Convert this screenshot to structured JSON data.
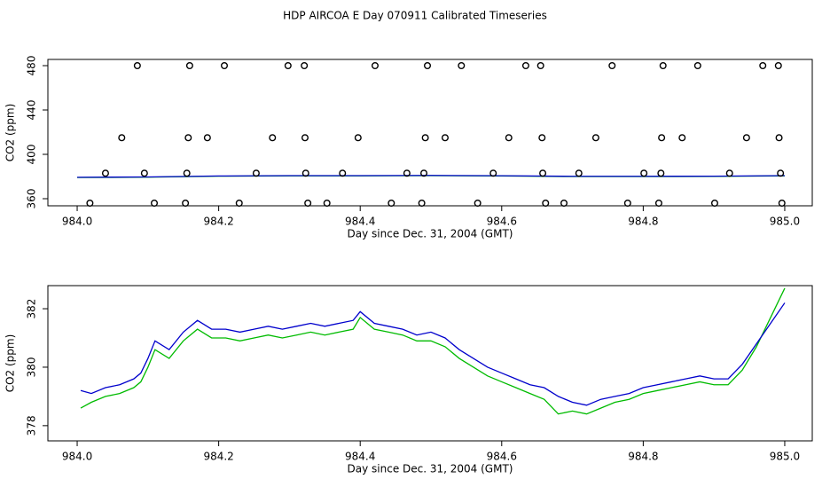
{
  "title": "HDP AIRCOA E  Day 070911  Calibrated Timeseries",
  "chart_data": [
    {
      "type": "line",
      "xlabel": "Day since Dec. 31, 2004 (GMT)",
      "ylabel": "CO2 (ppm)",
      "xlim": [
        983.9586,
        985.0389
      ],
      "ylim": [
        353.6,
        485.6
      ],
      "xticks": [
        {
          "value": 984,
          "label": "984.0"
        },
        {
          "value": 984.2,
          "label": "984.2"
        },
        {
          "value": 984.4,
          "label": "984.4"
        },
        {
          "value": 984.6,
          "label": "984.6"
        },
        {
          "value": 984.8,
          "label": "984.8"
        },
        {
          "value": 985,
          "label": "985.0"
        }
      ],
      "yticks": [
        360,
        400,
        440,
        480
      ],
      "x": [
        984.0,
        984.1,
        984.2,
        984.3,
        984.4,
        984.5,
        984.6,
        984.7,
        984.8,
        984.9,
        985.0
      ],
      "series": [
        {
          "style": "line",
          "color": "#00bb00",
          "values": [
            379.1,
            379.4,
            380.3,
            380.6,
            380.6,
            380.8,
            380.5,
            380.0,
            380.0,
            380.1,
            380.6
          ]
        },
        {
          "style": "line",
          "color": "#0000cc",
          "values": [
            379.3,
            379.6,
            380.5,
            380.8,
            380.8,
            381.0,
            380.7,
            380.2,
            380.2,
            380.3,
            380.8
          ]
        },
        {
          "style": "points",
          "color": "#000000",
          "x": [
            984.085,
            984.159,
            984.208,
            984.298,
            984.321,
            984.421,
            984.495,
            984.543,
            984.634,
            984.655,
            984.756,
            984.828,
            984.877,
            984.969,
            984.991,
            984.063,
            984.157,
            984.184,
            984.276,
            984.322,
            984.397,
            984.492,
            984.52,
            984.61,
            984.657,
            984.733,
            984.826,
            984.855,
            984.946,
            984.992,
            984.04,
            984.095,
            984.155,
            984.253,
            984.323,
            984.375,
            984.466,
            984.49,
            984.588,
            984.658,
            984.709,
            984.801,
            984.825,
            984.922,
            984.994,
            984.018,
            984.109,
            984.153,
            984.229,
            984.326,
            984.353,
            984.444,
            984.487,
            984.566,
            984.662,
            984.688,
            984.778,
            984.822,
            984.901,
            984.996
          ],
          "values": [
            480,
            480,
            480,
            480,
            480,
            480,
            480,
            480,
            480,
            480,
            480,
            480,
            480,
            480,
            480,
            415,
            415,
            415,
            415,
            415,
            415,
            415,
            415,
            415,
            415,
            415,
            415,
            415,
            415,
            415,
            383,
            383,
            383,
            383,
            383,
            383,
            383,
            383,
            383,
            383,
            383,
            383,
            383,
            383,
            383,
            356,
            356,
            356,
            356,
            356,
            356,
            356,
            356,
            356,
            356,
            356,
            356,
            356,
            356,
            356
          ]
        }
      ]
    },
    {
      "type": "line",
      "xlabel": "Day since Dec. 31, 2004 (GMT)",
      "ylabel": "CO2 (ppm)",
      "xlim": [
        983.9586,
        985.0389
      ],
      "ylim": [
        377.48,
        382.79
      ],
      "xticks": [
        {
          "value": 984,
          "label": "984.0"
        },
        {
          "value": 984.2,
          "label": "984.2"
        },
        {
          "value": 984.4,
          "label": "984.4"
        },
        {
          "value": 984.6,
          "label": "984.6"
        },
        {
          "value": 984.8,
          "label": "984.8"
        },
        {
          "value": 985,
          "label": "985.0"
        }
      ],
      "yticks": [
        378,
        380,
        382
      ],
      "x": [
        984.005,
        984.02,
        984.04,
        984.06,
        984.08,
        984.09,
        984.1,
        984.11,
        984.13,
        984.15,
        984.17,
        984.19,
        984.21,
        984.23,
        984.25,
        984.27,
        984.29,
        984.31,
        984.33,
        984.35,
        984.37,
        984.39,
        984.4,
        984.42,
        984.44,
        984.46,
        984.48,
        984.5,
        984.52,
        984.54,
        984.56,
        984.58,
        984.6,
        984.62,
        984.64,
        984.66,
        984.68,
        984.7,
        984.72,
        984.74,
        984.76,
        984.78,
        984.8,
        984.82,
        984.84,
        984.86,
        984.88,
        984.9,
        984.92,
        984.94,
        984.96,
        984.98,
        985.0
      ],
      "series": [
        {
          "style": "line",
          "color": "#00bb00",
          "values": [
            378.6,
            378.8,
            379.0,
            379.1,
            379.3,
            379.5,
            380.0,
            380.6,
            380.3,
            380.9,
            381.3,
            381.0,
            381.0,
            380.9,
            381.0,
            381.1,
            381.0,
            381.1,
            381.2,
            381.1,
            381.2,
            381.3,
            381.7,
            381.3,
            381.2,
            381.1,
            380.9,
            380.9,
            380.7,
            380.3,
            380.0,
            379.7,
            379.5,
            379.3,
            379.1,
            378.9,
            378.4,
            378.5,
            378.4,
            378.6,
            378.8,
            378.9,
            379.1,
            379.2,
            379.3,
            379.4,
            379.5,
            379.4,
            379.4,
            379.9,
            380.7,
            381.7,
            382.7
          ]
        },
        {
          "style": "line",
          "color": "#0000cc",
          "values": [
            379.2,
            379.1,
            379.3,
            379.4,
            379.6,
            379.8,
            380.3,
            380.9,
            380.6,
            381.2,
            381.6,
            381.3,
            381.3,
            381.2,
            381.3,
            381.4,
            381.3,
            381.4,
            381.5,
            381.4,
            381.5,
            381.6,
            381.9,
            381.5,
            381.4,
            381.3,
            381.1,
            381.2,
            381.0,
            380.6,
            380.3,
            380.0,
            379.8,
            379.6,
            379.4,
            379.3,
            379.0,
            378.8,
            378.7,
            378.9,
            379.0,
            379.1,
            379.3,
            379.4,
            379.5,
            379.6,
            379.7,
            379.6,
            379.6,
            380.1,
            380.8,
            381.5,
            382.2
          ]
        }
      ]
    }
  ]
}
